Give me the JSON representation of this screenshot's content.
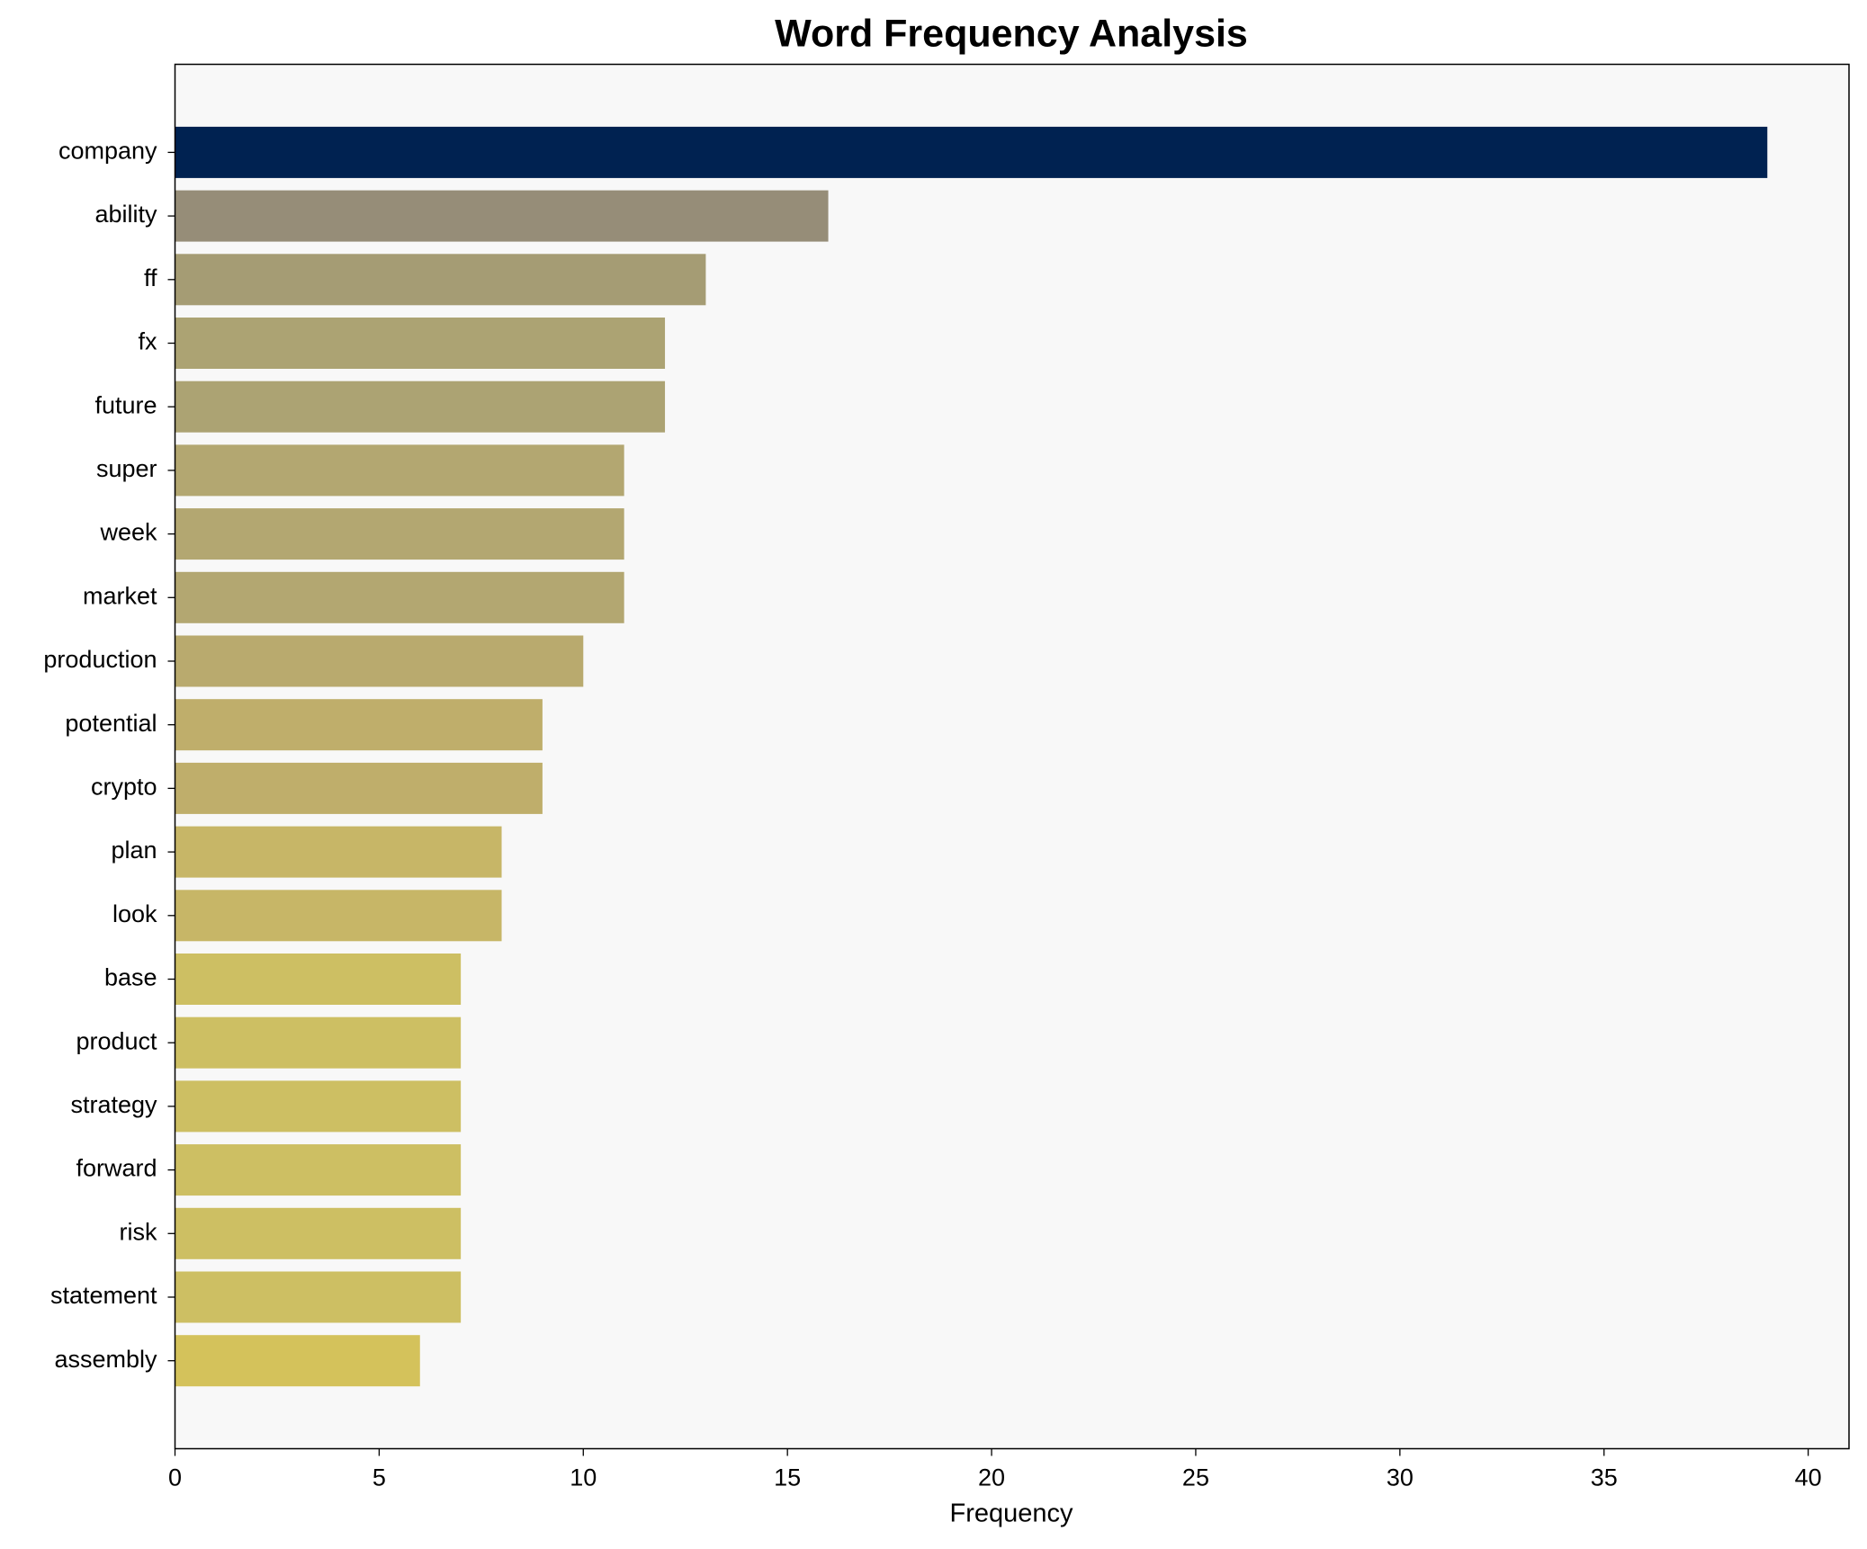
{
  "chart_data": {
    "type": "barh",
    "title": "Word Frequency Analysis",
    "xlabel": "Frequency",
    "categories": [
      "company",
      "ability",
      "ff",
      "fx",
      "future",
      "super",
      "week",
      "market",
      "production",
      "potential",
      "crypto",
      "plan",
      "look",
      "base",
      "product",
      "strategy",
      "forward",
      "risk",
      "statement",
      "assembly"
    ],
    "values": [
      39,
      16,
      13,
      12,
      12,
      11,
      11,
      11,
      10,
      9,
      9,
      8,
      8,
      7,
      7,
      7,
      7,
      7,
      7,
      6
    ],
    "colors": [
      "#002251",
      "#968d78",
      "#a59c74",
      "#aca373",
      "#aca373",
      "#b3a771",
      "#b3a771",
      "#b3a771",
      "#b9aa6e",
      "#bfae6b",
      "#bfae6b",
      "#c7b667",
      "#c7b667",
      "#cdbf63",
      "#cdbf63",
      "#cdbf63",
      "#cdbf63",
      "#cdbf63",
      "#cdbf63",
      "#d4c25b"
    ],
    "xlim": [
      0,
      41
    ],
    "xticks": [
      0,
      5,
      10,
      15,
      20,
      25,
      30,
      35,
      40
    ],
    "grid": false
  }
}
